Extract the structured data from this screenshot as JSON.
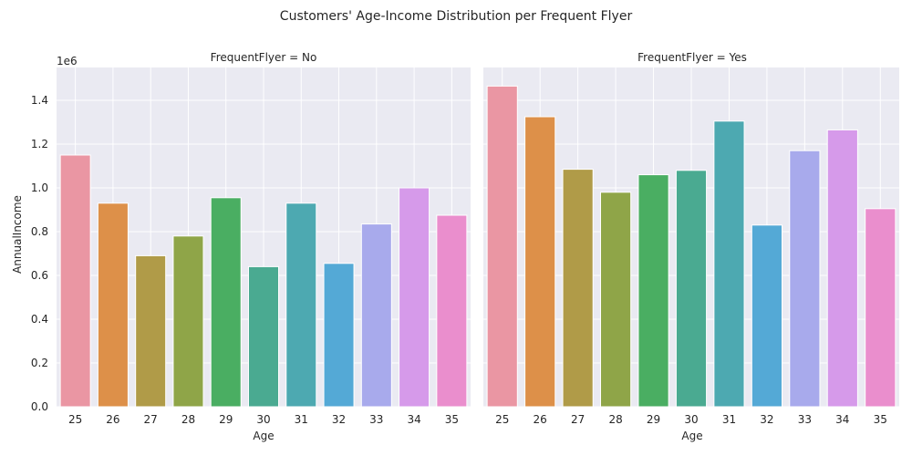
{
  "chart_data": {
    "type": "bar",
    "title": "Customers' Age-Income Distribution per Frequent Flyer",
    "xlabel": "Age",
    "ylabel": "AnnualIncome",
    "y_offset_label": "1e6",
    "ylim": [
      0,
      1.55
    ],
    "yticks": [
      "0.0",
      "0.2",
      "0.4",
      "0.6",
      "0.8",
      "1.0",
      "1.2",
      "1.4"
    ],
    "grid": true,
    "categories": [
      "25",
      "26",
      "27",
      "28",
      "29",
      "30",
      "31",
      "32",
      "33",
      "34",
      "35"
    ],
    "colors": [
      "#ea96a3",
      "#dd9049",
      "#b09b48",
      "#8fa548",
      "#4aae62",
      "#4aaa91",
      "#4da9b1",
      "#54a9d6",
      "#a8aaec",
      "#d69aea",
      "#ea8ecd"
    ],
    "panels": [
      {
        "title": "FrequentFlyer = No",
        "values": [
          1.15,
          0.93,
          0.69,
          0.78,
          0.955,
          0.64,
          0.93,
          0.655,
          0.835,
          1.0,
          0.875
        ]
      },
      {
        "title": "FrequentFlyer = Yes",
        "values": [
          1.465,
          1.325,
          1.085,
          0.98,
          1.06,
          1.08,
          1.305,
          0.83,
          1.17,
          1.265,
          0.905
        ]
      }
    ]
  }
}
